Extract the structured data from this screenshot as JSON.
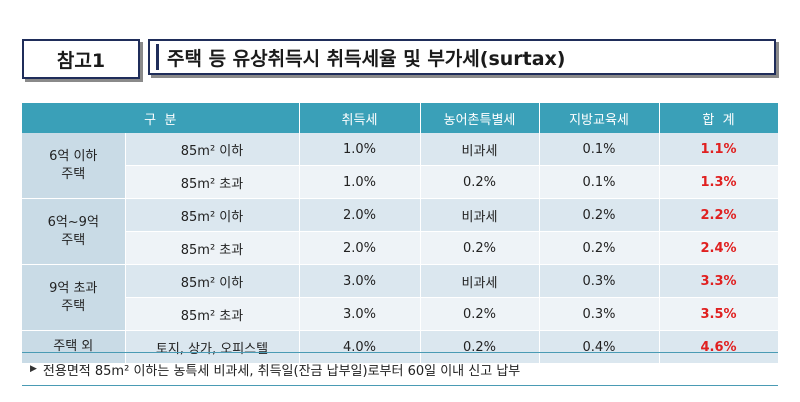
{
  "header": {
    "ref_label": "참고1",
    "title": "주택 등 유상취득시 취득세율 및 부가세(surtax)"
  },
  "table": {
    "columns": [
      "구  분",
      "취득세",
      "농어촌특별세",
      "지방교육세",
      "합  계"
    ],
    "groups": [
      {
        "label": "6억 이하\n주택",
        "rows": [
          {
            "size": "85m² 이하",
            "acq": "1.0%",
            "rural": "비과세",
            "edu": "0.1%",
            "total": "1.1%"
          },
          {
            "size": "85m² 초과",
            "acq": "1.0%",
            "rural": "0.2%",
            "edu": "0.1%",
            "total": "1.3%"
          }
        ]
      },
      {
        "label": "6억~9억\n주택",
        "rows": [
          {
            "size": "85m² 이하",
            "acq": "2.0%",
            "rural": "비과세",
            "edu": "0.2%",
            "total": "2.2%"
          },
          {
            "size": "85m² 초과",
            "acq": "2.0%",
            "rural": "0.2%",
            "edu": "0.2%",
            "total": "2.4%"
          }
        ]
      },
      {
        "label": "9억 초과\n주택",
        "rows": [
          {
            "size": "85m² 이하",
            "acq": "3.0%",
            "rural": "비과세",
            "edu": "0.3%",
            "total": "3.3%"
          },
          {
            "size": "85m² 초과",
            "acq": "3.0%",
            "rural": "0.2%",
            "edu": "0.3%",
            "total": "3.5%"
          }
        ]
      }
    ],
    "other": {
      "label": "주택 외",
      "size": "토지, 상가, 오피스텔",
      "acq": "4.0%",
      "rural": "0.2%",
      "edu": "0.4%",
      "total": "4.6%"
    }
  },
  "note": {
    "bullet": "▶",
    "text": "전용면적 85m² 이하는 농특세 비과세, 취득일(잔금 납부일)로부터 60일 이내 신고 납부"
  }
}
